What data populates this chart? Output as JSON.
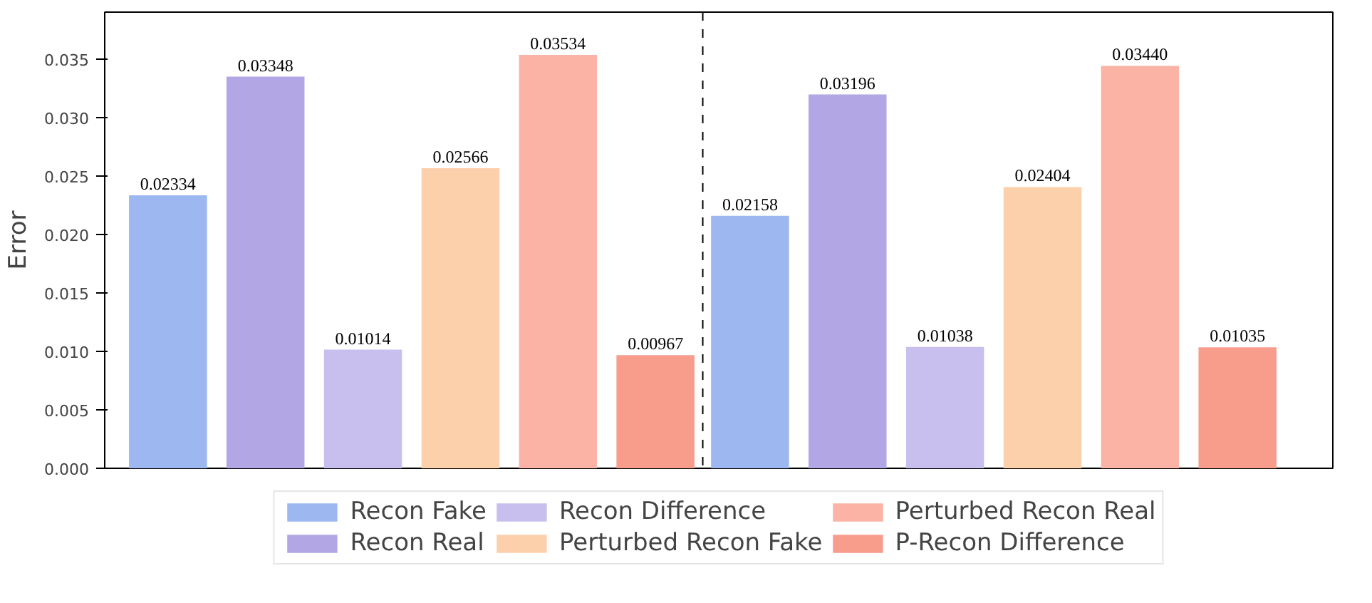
{
  "chart_data": {
    "type": "bar",
    "ylabel": "Error",
    "categories": [
      null,
      null
    ],
    "series": [
      {
        "name": "Recon Fake",
        "color": "#9db8f0",
        "values": [
          0.02334,
          0.02158
        ],
        "value_labels": [
          "0.02334",
          "0.02158"
        ]
      },
      {
        "name": "Recon Real",
        "color": "#b3a6e4",
        "values": [
          0.03348,
          0.03196
        ],
        "value_labels": [
          "0.03348",
          "0.03196"
        ]
      },
      {
        "name": "Recon Difference",
        "color": "#c8bfee",
        "values": [
          0.01014,
          0.01038
        ],
        "value_labels": [
          "0.01014",
          "0.01038"
        ]
      },
      {
        "name": "Perturbed Recon Fake",
        "color": "#fdd0ac",
        "values": [
          0.02566,
          0.02404
        ],
        "value_labels": [
          "0.02566",
          "0.02404"
        ]
      },
      {
        "name": "Perturbed Recon Real",
        "color": "#fbb3a6",
        "values": [
          0.03534,
          0.0344
        ],
        "value_labels": [
          "0.03534",
          "0.03440"
        ]
      },
      {
        "name": "P-Recon Difference",
        "color": "#f89d8c",
        "values": [
          0.00967,
          0.01035
        ],
        "value_labels": [
          "0.00967",
          "0.01035"
        ]
      }
    ],
    "ylim": [
      0,
      0.039
    ],
    "yticks": [
      {
        "value": 0,
        "label": "0.000"
      },
      {
        "value": 0.005,
        "label": "0.005"
      },
      {
        "value": 0.01,
        "label": "0.010"
      },
      {
        "value": 0.015,
        "label": "0.015"
      },
      {
        "value": 0.02,
        "label": "0.020"
      },
      {
        "value": 0.025,
        "label": "0.025"
      },
      {
        "value": 0.03,
        "label": "0.030"
      },
      {
        "value": 0.035,
        "label": "0.035"
      }
    ],
    "legend": "bottom"
  }
}
